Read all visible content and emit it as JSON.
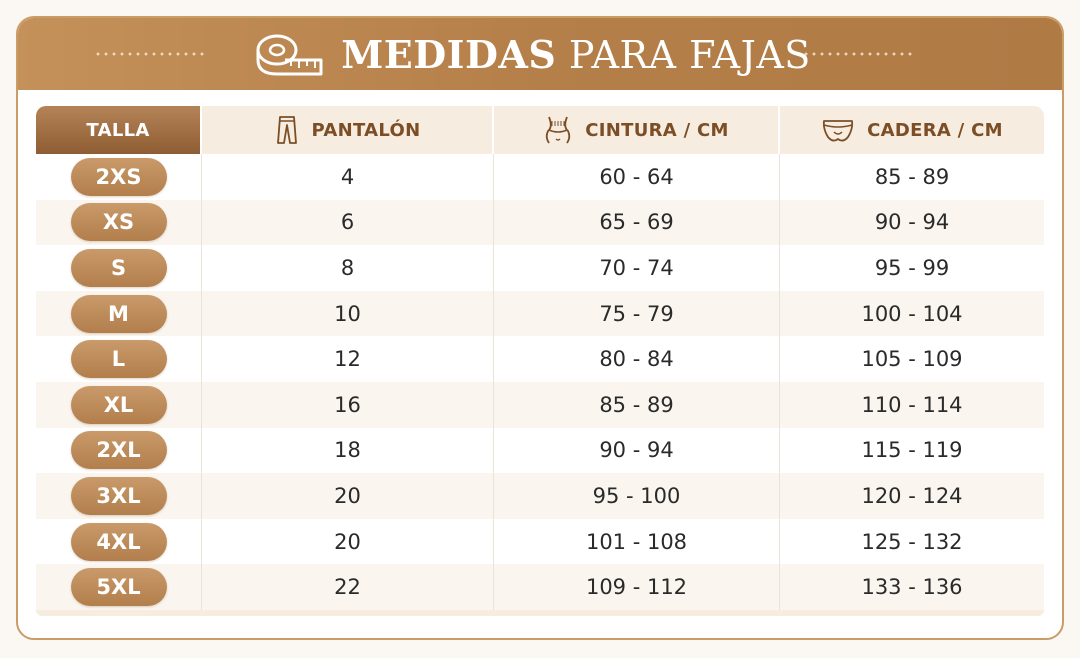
{
  "header": {
    "title_bold": "MEDIDAS",
    "title_light": "PARA FAJAS",
    "icon": "measuring-tape-icon"
  },
  "table": {
    "columns": [
      {
        "label": "TALLA",
        "icon": ""
      },
      {
        "label": "PANTALÓN",
        "icon": "pants-icon"
      },
      {
        "label": "CINTURA / CM",
        "icon": "waist-icon"
      },
      {
        "label": "CADERA / CM",
        "icon": "hip-icon"
      }
    ],
    "rows": [
      {
        "size": "2XS",
        "pantalon": "4",
        "cintura": "60 - 64",
        "cadera": "85 - 89"
      },
      {
        "size": "XS",
        "pantalon": "6",
        "cintura": "65 - 69",
        "cadera": "90 - 94"
      },
      {
        "size": "S",
        "pantalon": "8",
        "cintura": "70 - 74",
        "cadera": "95 - 99"
      },
      {
        "size": "M",
        "pantalon": "10",
        "cintura": "75 - 79",
        "cadera": "100 - 104"
      },
      {
        "size": "L",
        "pantalon": "12",
        "cintura": "80 - 84",
        "cadera": "105 - 109"
      },
      {
        "size": "XL",
        "pantalon": "16",
        "cintura": "85 - 89",
        "cadera": "110 - 114"
      },
      {
        "size": "2XL",
        "pantalon": "18",
        "cintura": "90 - 94",
        "cadera": "115 - 119"
      },
      {
        "size": "3XL",
        "pantalon": "20",
        "cintura": "95 - 100",
        "cadera": "120 - 124"
      },
      {
        "size": "4XL",
        "pantalon": "20",
        "cintura": "101 - 108",
        "cadera": "125 - 132"
      },
      {
        "size": "5XL",
        "pantalon": "22",
        "cintura": "109 - 112",
        "cadera": "133 - 136"
      }
    ]
  },
  "colors": {
    "accent": "#b57f49",
    "header_text": "#7c4e26",
    "pill": "#bf8c5a"
  }
}
